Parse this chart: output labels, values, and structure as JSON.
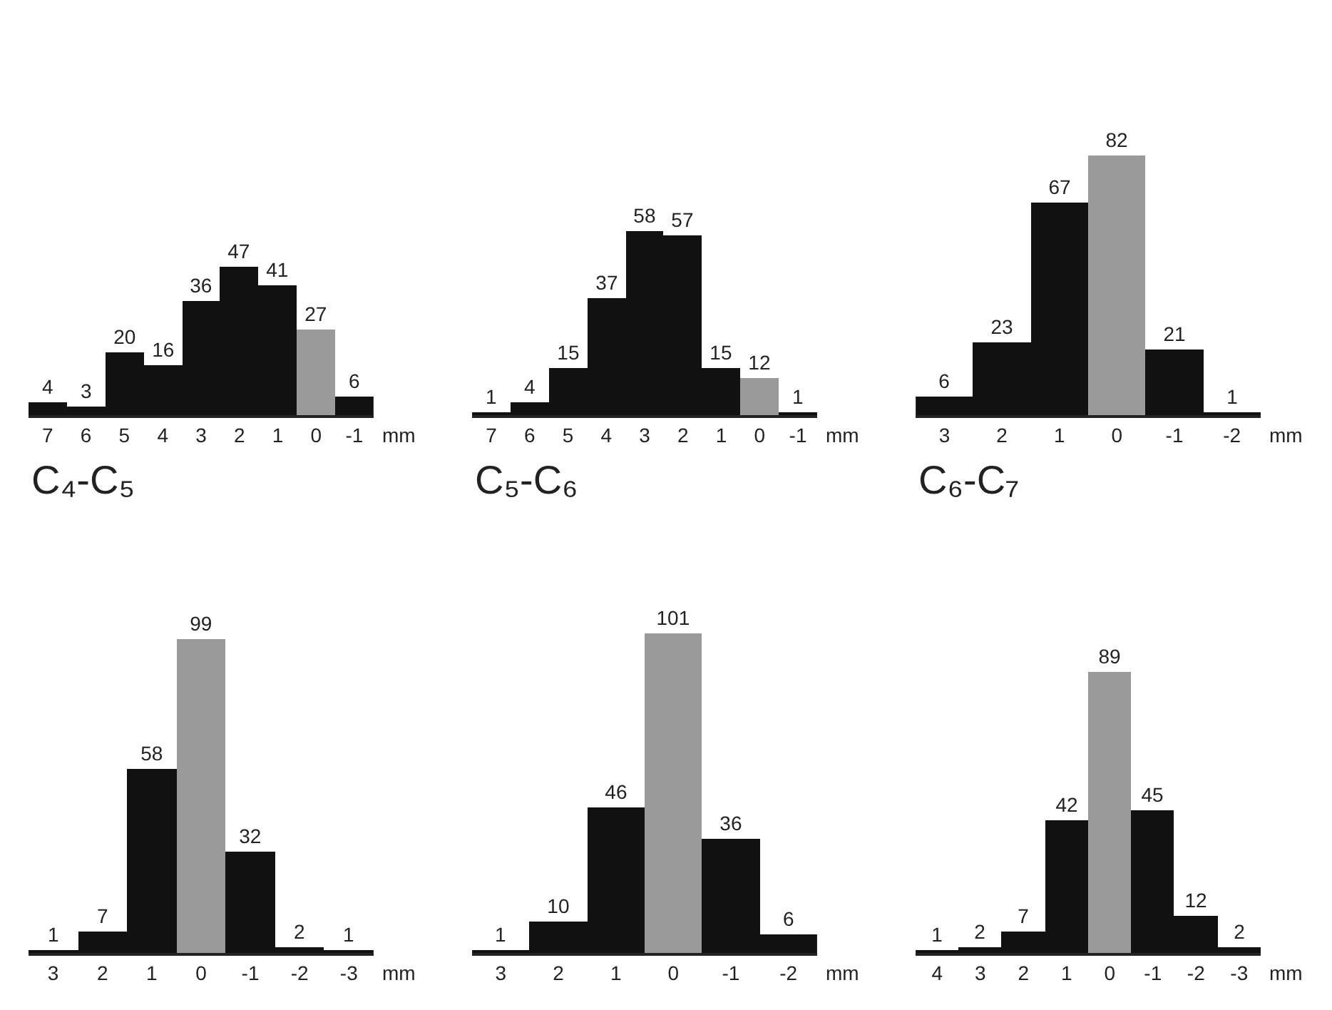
{
  "chart_data": [
    {
      "type": "bar",
      "categories": [
        "7",
        "6",
        "5",
        "4",
        "3",
        "2",
        "1",
        "0",
        "-1"
      ],
      "values": [
        4,
        3,
        20,
        16,
        36,
        47,
        41,
        27,
        6
      ],
      "colors": [
        "#111111",
        "#111111",
        "#111111",
        "#111111",
        "#111111",
        "#111111",
        "#111111",
        "#9a9a9a",
        "#111111"
      ],
      "xlabel": "mm",
      "data_labels": true,
      "tick_labels": "x"
    },
    {
      "type": "bar",
      "categories": [
        "7",
        "6",
        "5",
        "4",
        "3",
        "2",
        "1",
        "0",
        "-1"
      ],
      "values": [
        1,
        4,
        15,
        37,
        58,
        57,
        15,
        12,
        1
      ],
      "colors": [
        "#111111",
        "#111111",
        "#111111",
        "#111111",
        "#111111",
        "#111111",
        "#111111",
        "#9a9a9a",
        "#111111"
      ],
      "xlabel": "mm",
      "data_labels": true,
      "tick_labels": "x"
    },
    {
      "type": "bar",
      "categories": [
        "3",
        "2",
        "1",
        "0",
        "-1",
        "-2"
      ],
      "values": [
        6,
        23,
        67,
        82,
        21,
        1
      ],
      "colors": [
        "#111111",
        "#111111",
        "#111111",
        "#9a9a9a",
        "#111111",
        "#111111"
      ],
      "xlabel": "mm",
      "data_labels": true,
      "tick_labels": "x"
    },
    {
      "type": "bar",
      "title": "C₄-C₅",
      "categories": [
        "3",
        "2",
        "1",
        "0",
        "-1",
        "-2",
        "-3"
      ],
      "values": [
        1,
        7,
        58,
        99,
        32,
        2,
        1
      ],
      "colors": [
        "#111111",
        "#111111",
        "#111111",
        "#9a9a9a",
        "#111111",
        "#111111",
        "#111111"
      ],
      "xlabel": "mm",
      "data_labels": true,
      "tick_labels": "x"
    },
    {
      "type": "bar",
      "title": "C₅-C₆",
      "categories": [
        "3",
        "2",
        "1",
        "0",
        "-1",
        "-2"
      ],
      "values": [
        1,
        10,
        46,
        101,
        36,
        6
      ],
      "colors": [
        "#111111",
        "#111111",
        "#111111",
        "#9a9a9a",
        "#111111",
        "#111111"
      ],
      "xlabel": "mm",
      "data_labels": true,
      "tick_labels": "x"
    },
    {
      "type": "bar",
      "title": "C₆-C₇",
      "categories": [
        "4",
        "3",
        "2",
        "1",
        "0",
        "-1",
        "-2",
        "-3"
      ],
      "values": [
        1,
        2,
        7,
        42,
        89,
        45,
        12,
        2
      ],
      "colors": [
        "#111111",
        "#111111",
        "#111111",
        "#111111",
        "#9a9a9a",
        "#111111",
        "#111111",
        "#111111"
      ],
      "xlabel": "mm",
      "data_labels": true,
      "tick_labels": "x"
    }
  ]
}
